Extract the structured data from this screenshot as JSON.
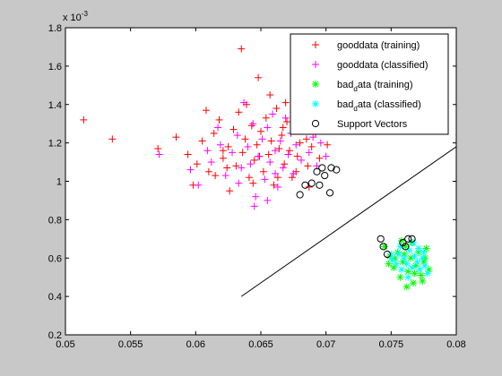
{
  "chart_data": {
    "type": "scatter",
    "title": "",
    "xlabel": "",
    "ylabel": "",
    "xlim": [
      0.05,
      0.08
    ],
    "ylim": [
      0.2,
      1.8
    ],
    "y_exponent_label": "x 10",
    "y_exponent_power": "-3",
    "x_ticks": [
      {
        "value": 0.05,
        "label": "0.05"
      },
      {
        "value": 0.055,
        "label": "0.055"
      },
      {
        "value": 0.06,
        "label": "0.06"
      },
      {
        "value": 0.065,
        "label": "0.065"
      },
      {
        "value": 0.07,
        "label": "0.07"
      },
      {
        "value": 0.075,
        "label": "0.075"
      },
      {
        "value": 0.08,
        "label": "0.08"
      }
    ],
    "y_ticks": [
      {
        "value": 0.2,
        "label": "0.2"
      },
      {
        "value": 0.4,
        "label": "0.4"
      },
      {
        "value": 0.6,
        "label": "0.6"
      },
      {
        "value": 0.8,
        "label": "0.8"
      },
      {
        "value": 1.0,
        "label": "1"
      },
      {
        "value": 1.2,
        "label": "1.2"
      },
      {
        "value": 1.4,
        "label": "1.4"
      },
      {
        "value": 1.6,
        "label": "1.6"
      },
      {
        "value": 1.8,
        "label": "1.8"
      }
    ],
    "grid": false,
    "legend_position": "top-right",
    "decision_boundary": {
      "x": [
        0.0635,
        0.08
      ],
      "y": [
        0.4,
        1.18
      ],
      "color": "#000000"
    },
    "series": [
      {
        "name": "gooddata (training)",
        "legend_main": "gooddata (training)",
        "legend_sub": "",
        "legend_rest": "",
        "marker": "plus",
        "color": "#ff0000",
        "points": [
          [
            0.0514,
            1.32
          ],
          [
            0.0536,
            1.22
          ],
          [
            0.0635,
            1.69
          ],
          [
            0.0648,
            1.54
          ],
          [
            0.0585,
            1.23
          ],
          [
            0.0571,
            1.17
          ],
          [
            0.0601,
            1.09
          ],
          [
            0.0605,
            1.21
          ],
          [
            0.061,
            1.05
          ],
          [
            0.0614,
            1.25
          ],
          [
            0.0618,
            1.32
          ],
          [
            0.0621,
            1.12
          ],
          [
            0.0625,
            1.18
          ],
          [
            0.0629,
            1.27
          ],
          [
            0.0631,
            1.08
          ],
          [
            0.0633,
            1.36
          ],
          [
            0.0636,
            1.15
          ],
          [
            0.0638,
            1.22
          ],
          [
            0.0641,
            1.02
          ],
          [
            0.0643,
            1.29
          ],
          [
            0.0645,
            1.11
          ],
          [
            0.0647,
            1.19
          ],
          [
            0.065,
            1.26
          ],
          [
            0.0652,
            1.05
          ],
          [
            0.0654,
            1.33
          ],
          [
            0.0656,
            1.14
          ],
          [
            0.0658,
            1.21
          ],
          [
            0.066,
            0.98
          ],
          [
            0.0662,
            1.38
          ],
          [
            0.0664,
            1.17
          ],
          [
            0.0666,
            1.24
          ],
          [
            0.0668,
            1.09
          ],
          [
            0.067,
            1.31
          ],
          [
            0.0672,
            1.16
          ],
          [
            0.0674,
            1.02
          ],
          [
            0.0676,
            1.27
          ],
          [
            0.0678,
            1.13
          ],
          [
            0.068,
            1.2
          ],
          [
            0.0683,
            1.35
          ],
          [
            0.0686,
            1.08
          ],
          [
            0.0689,
            1.18
          ],
          [
            0.0692,
            1.25
          ],
          [
            0.0695,
            1.12
          ],
          [
            0.0698,
            1.3
          ],
          [
            0.0701,
            1.19
          ],
          [
            0.0626,
            0.95
          ],
          [
            0.0615,
            1.03
          ],
          [
            0.0639,
            1.4
          ],
          [
            0.0657,
            1.45
          ],
          [
            0.0669,
            1.41
          ],
          [
            0.0608,
            1.37
          ],
          [
            0.0598,
            0.98
          ],
          [
            0.0624,
            1.07
          ],
          [
            0.0644,
            0.99
          ],
          [
            0.0663,
            1.02
          ],
          [
            0.0677,
            1.05
          ],
          [
            0.0687,
            0.97
          ],
          [
            0.0594,
            1.14
          ],
          [
            0.0621,
            1.16
          ],
          [
            0.0649,
            1.13
          ],
          [
            0.0667,
            1.28
          ],
          [
            0.0685,
            1.22
          ]
        ]
      },
      {
        "name": "gooddata (classified)",
        "legend_main": "gooddata (classified)",
        "legend_sub": "",
        "legend_rest": "",
        "marker": "plus",
        "color": "#ff00ff",
        "points": [
          [
            0.0572,
            1.14
          ],
          [
            0.0596,
            1.06
          ],
          [
            0.0602,
            0.98
          ],
          [
            0.0612,
            1.1
          ],
          [
            0.0619,
            1.19
          ],
          [
            0.0623,
            1.03
          ],
          [
            0.0628,
            1.15
          ],
          [
            0.0632,
            1.24
          ],
          [
            0.0635,
            1.07
          ],
          [
            0.0637,
            1.41
          ],
          [
            0.064,
            1.18
          ],
          [
            0.0642,
            1.09
          ],
          [
            0.0644,
            1.3
          ],
          [
            0.0646,
            0.92
          ],
          [
            0.0648,
            1.13
          ],
          [
            0.0651,
            1.22
          ],
          [
            0.0653,
            1.01
          ],
          [
            0.0655,
            1.28
          ],
          [
            0.0657,
            1.1
          ],
          [
            0.0659,
            1.35
          ],
          [
            0.0661,
            1.16
          ],
          [
            0.0663,
            0.97
          ],
          [
            0.0665,
            1.21
          ],
          [
            0.0667,
            1.07
          ],
          [
            0.0669,
            1.33
          ],
          [
            0.0671,
            1.14
          ],
          [
            0.0673,
            1.25
          ],
          [
            0.0675,
            1.04
          ],
          [
            0.0677,
            1.19
          ],
          [
            0.0679,
            1.39
          ],
          [
            0.0681,
            1.11
          ],
          [
            0.0684,
            1.27
          ],
          [
            0.0687,
            1.15
          ],
          [
            0.069,
            1.23
          ],
          [
            0.0693,
            1.08
          ],
          [
            0.0696,
            1.2
          ],
          [
            0.07,
            1.13
          ],
          [
            0.0702,
            1.29
          ],
          [
            0.0645,
            0.87
          ],
          [
            0.0655,
            0.9
          ],
          [
            0.0617,
            1.28
          ],
          [
            0.0633,
            0.99
          ],
          [
            0.0661,
            1.04
          ],
          [
            0.0675,
            1.36
          ],
          [
            0.0609,
            1.16
          ]
        ]
      },
      {
        "name": "bad_data (training)",
        "legend_main": "bad",
        "legend_sub": "d",
        "legend_rest": "ata (training)",
        "marker": "star",
        "color": "#00ff00",
        "points": [
          [
            0.0745,
            0.66
          ],
          [
            0.0749,
            0.61
          ],
          [
            0.0752,
            0.55
          ],
          [
            0.0755,
            0.63
          ],
          [
            0.0757,
            0.5
          ],
          [
            0.0759,
            0.58
          ],
          [
            0.0761,
            0.66
          ],
          [
            0.0763,
            0.53
          ],
          [
            0.0765,
            0.6
          ],
          [
            0.0767,
            0.47
          ],
          [
            0.0769,
            0.56
          ],
          [
            0.0771,
            0.63
          ],
          [
            0.0773,
            0.51
          ],
          [
            0.0775,
            0.58
          ],
          [
            0.0777,
            0.65
          ],
          [
            0.0779,
            0.54
          ],
          [
            0.0758,
            0.69
          ],
          [
            0.0766,
            0.68
          ],
          [
            0.0774,
            0.48
          ],
          [
            0.0762,
            0.45
          ],
          [
            0.0753,
            0.6
          ],
          [
            0.0768,
            0.52
          ],
          [
            0.0776,
            0.6
          ],
          [
            0.076,
            0.62
          ],
          [
            0.0748,
            0.57
          ]
        ]
      },
      {
        "name": "bad_data (classified)",
        "legend_main": "bad",
        "legend_sub": "d",
        "legend_rest": "ata (classified)",
        "marker": "star",
        "color": "#00ffff",
        "points": [
          [
            0.0751,
            0.59
          ],
          [
            0.0754,
            0.57
          ],
          [
            0.0756,
            0.62
          ],
          [
            0.0758,
            0.54
          ],
          [
            0.076,
            0.6
          ],
          [
            0.0762,
            0.57
          ],
          [
            0.0764,
            0.64
          ],
          [
            0.0766,
            0.55
          ],
          [
            0.0768,
            0.61
          ],
          [
            0.077,
            0.58
          ],
          [
            0.0772,
            0.54
          ],
          [
            0.0774,
            0.6
          ],
          [
            0.0776,
            0.56
          ],
          [
            0.0778,
            0.52
          ],
          [
            0.0763,
            0.5
          ],
          [
            0.0771,
            0.65
          ],
          [
            0.0757,
            0.66
          ],
          [
            0.0767,
            0.68
          ],
          [
            0.075,
            0.62
          ],
          [
            0.0775,
            0.63
          ]
        ]
      },
      {
        "name": "Support Vectors",
        "legend_main": "Support Vectors",
        "legend_sub": "",
        "legend_rest": "",
        "marker": "circle",
        "color": "#000000",
        "points": [
          [
            0.0693,
            1.05
          ],
          [
            0.0697,
            1.07
          ],
          [
            0.0704,
            1.07
          ],
          [
            0.0708,
            1.06
          ],
          [
            0.0689,
            0.99
          ],
          [
            0.0695,
            0.98
          ],
          [
            0.0684,
            0.98
          ],
          [
            0.068,
            0.93
          ],
          [
            0.0703,
            0.94
          ],
          [
            0.0699,
            1.03
          ],
          [
            0.0742,
            0.7
          ],
          [
            0.0744,
            0.66
          ],
          [
            0.0747,
            0.62
          ],
          [
            0.0759,
            0.68
          ],
          [
            0.0763,
            0.7
          ],
          [
            0.0766,
            0.7
          ],
          [
            0.0761,
            0.66
          ]
        ]
      }
    ]
  }
}
